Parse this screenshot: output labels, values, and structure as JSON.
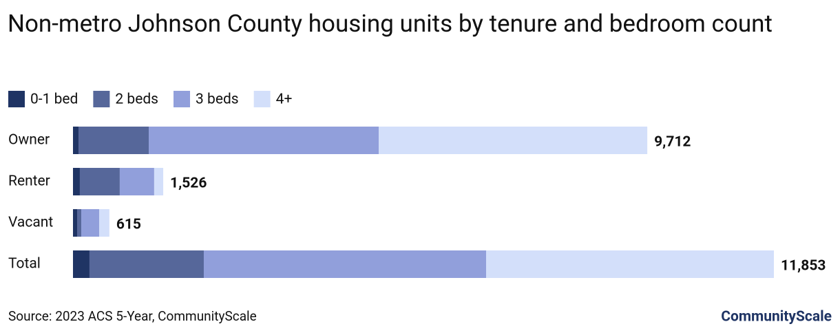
{
  "chart_data": {
    "type": "stacked-bar-horizontal",
    "title": "Non-metro Johnson County housing units by tenure and bedroom count",
    "categories": [
      "Owner",
      "Renter",
      "Vacant",
      "Total"
    ],
    "series": [
      {
        "name": "0-1 bed",
        "color": "#1f3464",
        "values": [
          93,
          116,
          70,
          279
        ]
      },
      {
        "name": "2 beds",
        "color": "#56679a",
        "values": [
          1188,
          675,
          70,
          1933
        ]
      },
      {
        "name": "3 beds",
        "color": "#919fdb",
        "values": [
          3889,
          582,
          303,
          4774
        ]
      },
      {
        "name": "4+",
        "color": "#d3dffa",
        "values": [
          4542,
          153,
          172,
          4867
        ]
      }
    ],
    "totals": {
      "values": [
        9712,
        1526,
        615,
        11853
      ],
      "value_labels": [
        "9,712",
        "1,526",
        "615",
        "11,853"
      ]
    },
    "legend": "top-left",
    "source": "Source: 2023 ACS 5-Year, CommunityScale",
    "brand": "CommunityScale"
  }
}
